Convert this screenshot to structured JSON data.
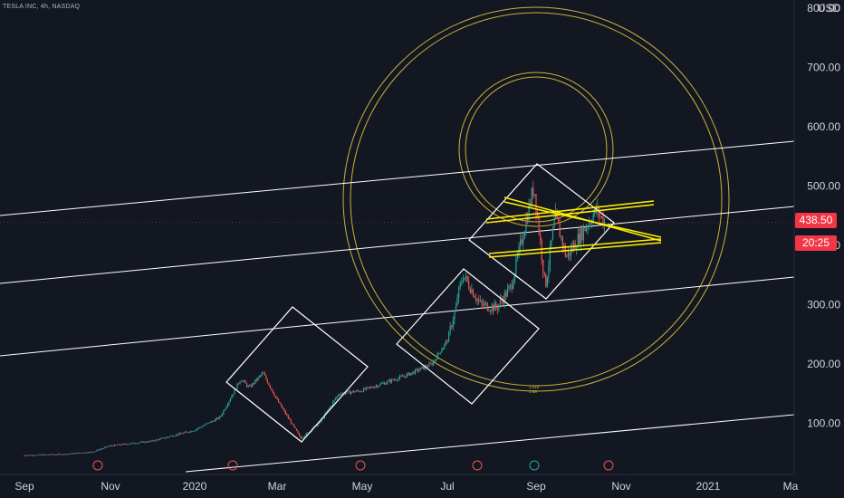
{
  "header": {
    "ticker": "TESLA INC, 4h, NASDAQ",
    "currency": "USD"
  },
  "price_axis": {
    "ticks": [
      "800.00",
      "700.00",
      "600.00",
      "500.00",
      "400.00",
      "300.00",
      "200.00",
      "100.00"
    ],
    "last_price": "438.50",
    "countdown": "20:25"
  },
  "time_axis": {
    "ticks": [
      "Sep",
      "Nov",
      "2020",
      "Mar",
      "May",
      "Jul",
      "Sep",
      "Nov",
      "2021",
      "Ma"
    ]
  },
  "colors": {
    "bg": "#131722",
    "up": "#26a69a",
    "down": "#ef5350",
    "line": "#ffffff",
    "fib": "#c9b23a",
    "channel": "#ffee00",
    "label": "#f23645"
  },
  "chart_data": {
    "type": "candlestick",
    "symbol": "TSLA",
    "interval": "4h",
    "ylim": [
      20,
      820
    ],
    "price_series": [
      [
        "2019-09-01",
        46
      ],
      [
        "2019-10-01",
        48
      ],
      [
        "2019-10-20",
        52
      ],
      [
        "2019-11-01",
        62
      ],
      [
        "2019-12-01",
        70
      ],
      [
        "2020-01-01",
        88
      ],
      [
        "2020-01-20",
        110
      ],
      [
        "2020-02-04",
        175
      ],
      [
        "2020-02-10",
        160
      ],
      [
        "2020-02-20",
        185
      ],
      [
        "2020-03-01",
        140
      ],
      [
        "2020-03-18",
        75
      ],
      [
        "2020-04-01",
        100
      ],
      [
        "2020-04-15",
        150
      ],
      [
        "2020-05-01",
        155
      ],
      [
        "2020-06-01",
        180
      ],
      [
        "2020-06-20",
        200
      ],
      [
        "2020-07-01",
        240
      ],
      [
        "2020-07-13",
        350
      ],
      [
        "2020-07-25",
        300
      ],
      [
        "2020-08-05",
        295
      ],
      [
        "2020-08-15",
        330
      ],
      [
        "2020-08-31",
        500
      ],
      [
        "2020-09-08",
        330
      ],
      [
        "2020-09-15",
        450
      ],
      [
        "2020-09-23",
        380
      ],
      [
        "2020-10-05",
        425
      ],
      [
        "2020-10-14",
        460
      ],
      [
        "2020-10-20",
        438.5
      ]
    ],
    "last_price": 438.5,
    "annotations": [
      "parallel channel lines",
      "rotated square boxes",
      "fibonacci circles",
      "yellow triangle channel"
    ],
    "fib_labels": [
      "1.618",
      "1.65"
    ]
  }
}
